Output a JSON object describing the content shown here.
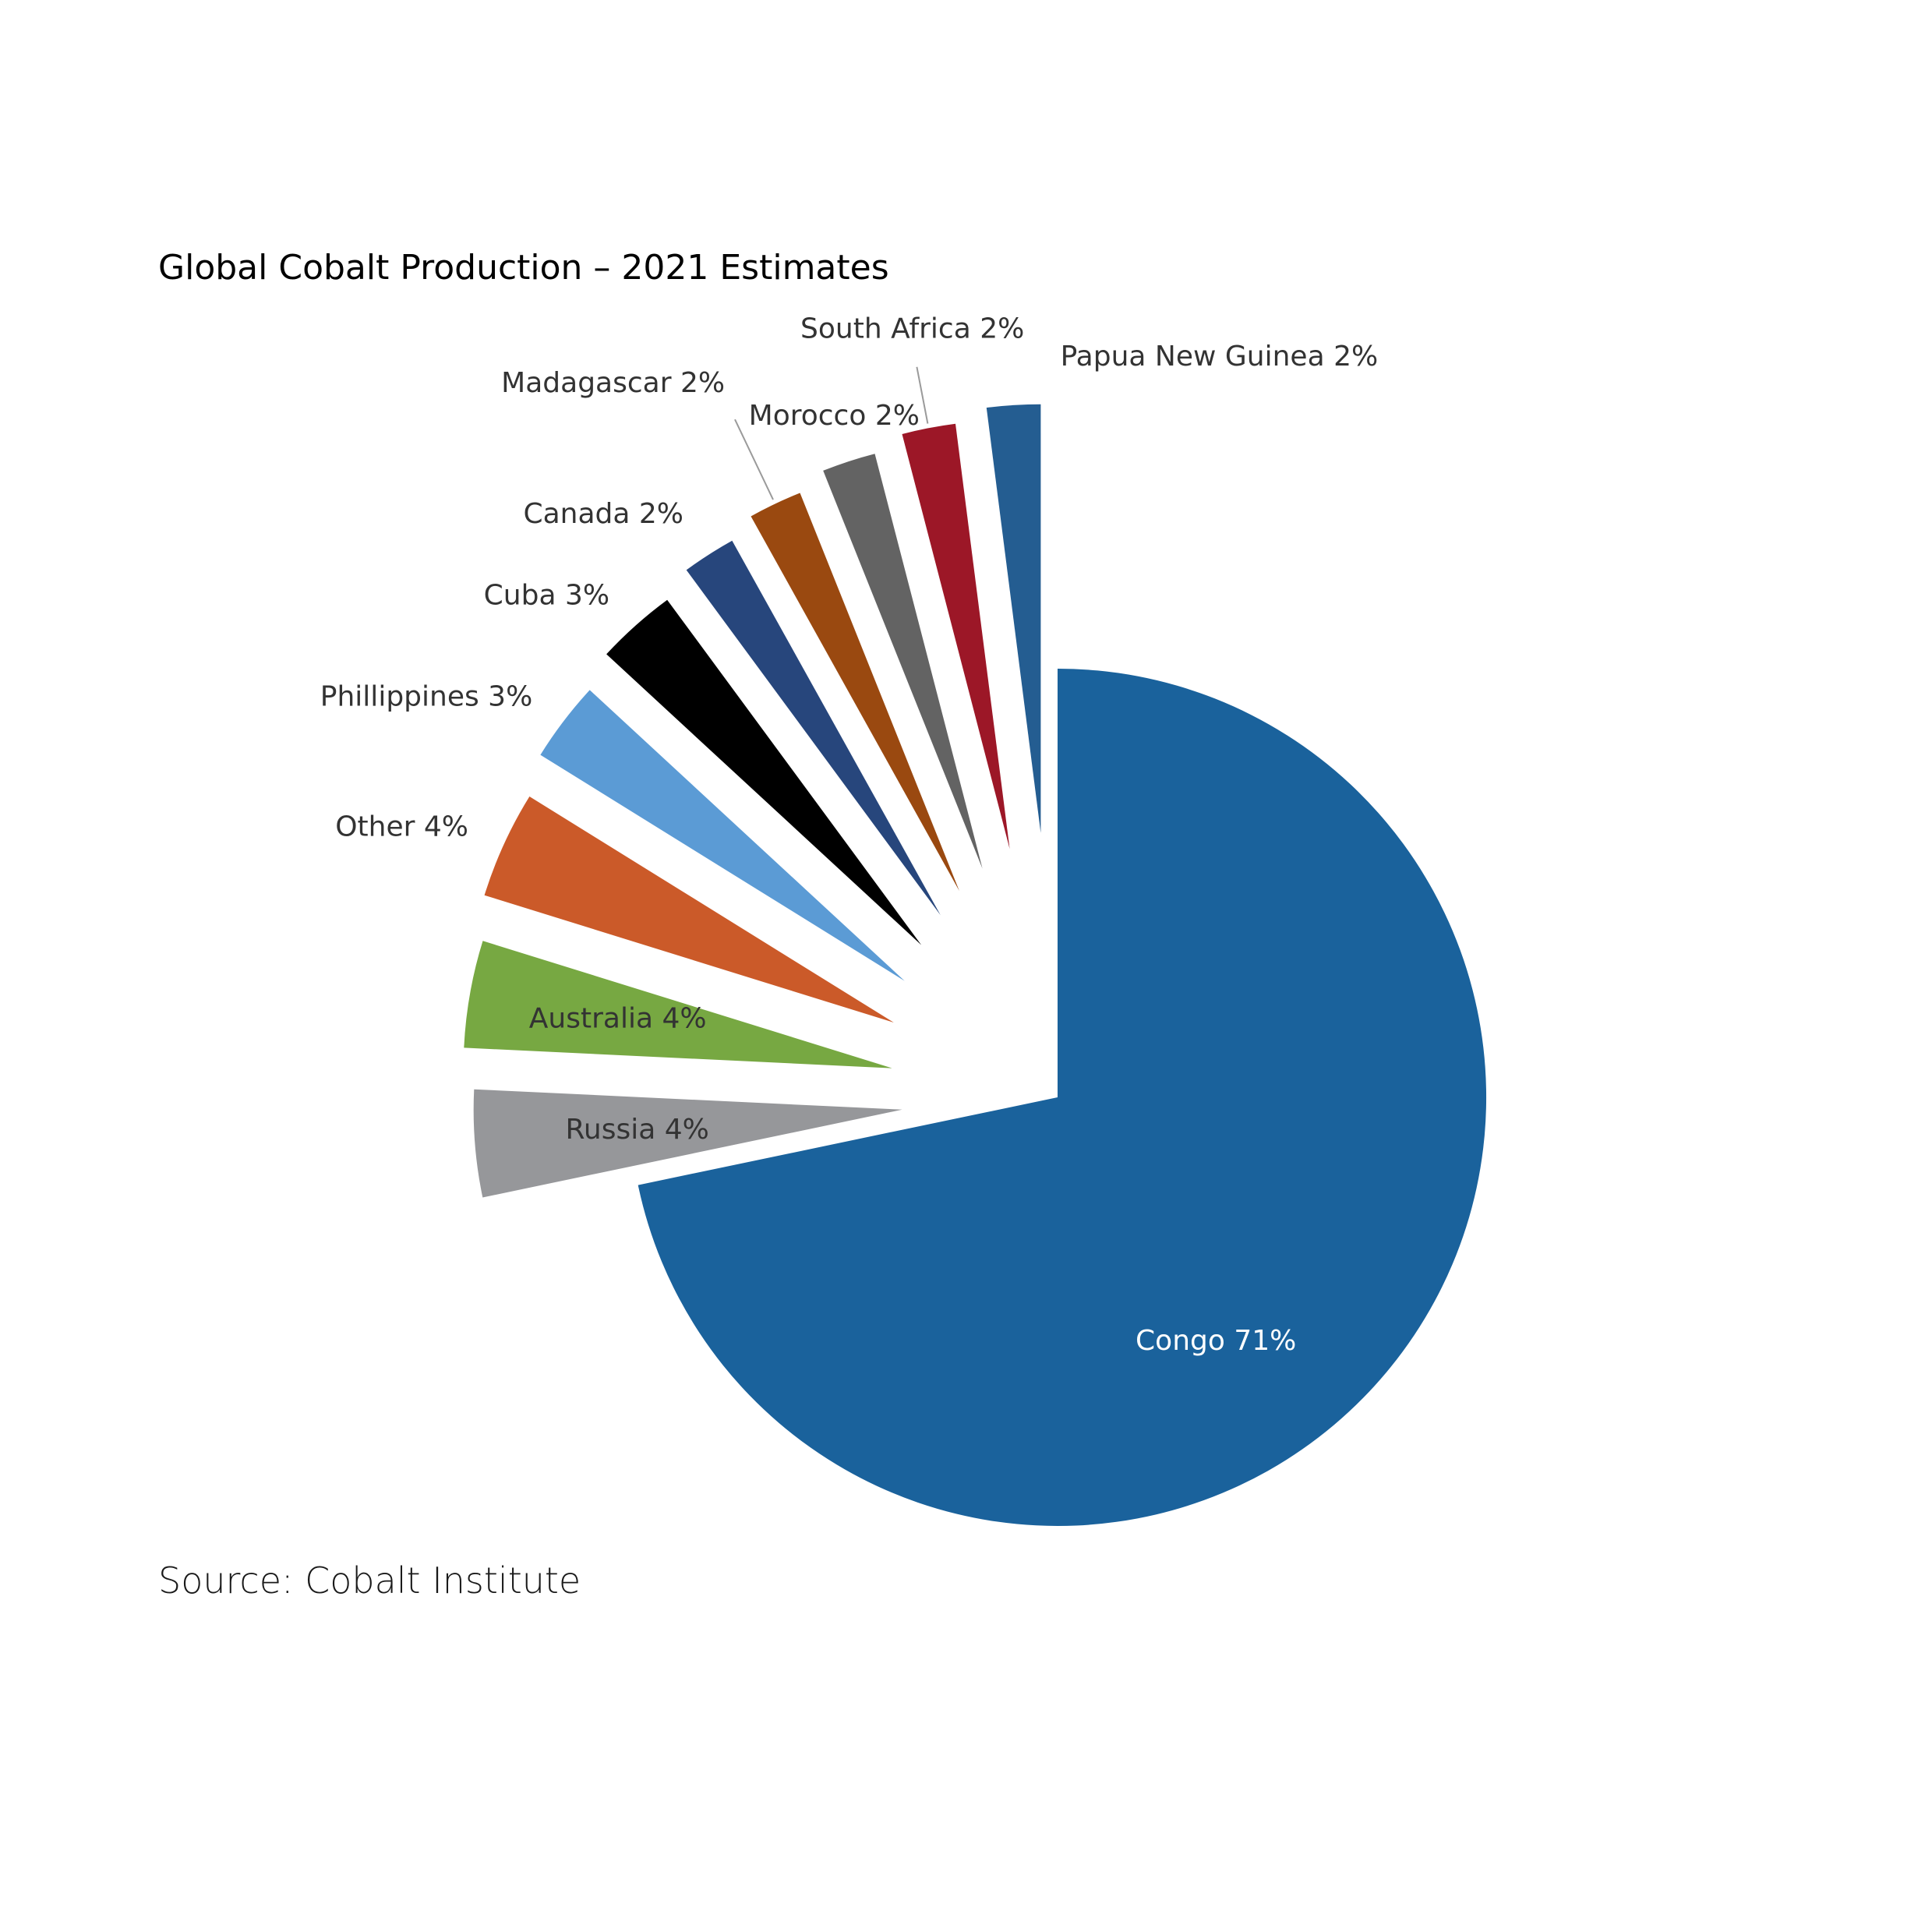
{
  "chart_data": {
    "type": "pie",
    "title": "Global Cobalt Production – 2021 Estimates",
    "source": "Source: Cobalt Institute",
    "unit": "%",
    "slices": [
      {
        "label": "Congo",
        "value": 71,
        "display": "Congo 71%",
        "color": "#1a629c"
      },
      {
        "label": "Russia",
        "value": 4,
        "display": "Russia 4%",
        "color": "#96979a"
      },
      {
        "label": "Australia",
        "value": 4,
        "display": "Australia 4%",
        "color": "#77a842"
      },
      {
        "label": "Other",
        "value": 4,
        "display": "Other 4%",
        "color": "#cb5a29"
      },
      {
        "label": "Phillippines",
        "value": 3,
        "display": "Phillippines 3%",
        "color": "#5b9bd5"
      },
      {
        "label": "Cuba",
        "value": 3,
        "display": "Cuba 3%",
        "color": "#000000"
      },
      {
        "label": "Canada",
        "value": 2,
        "display": "Canada 2%",
        "color": "#27467c"
      },
      {
        "label": "Madagascar",
        "value": 2,
        "display": "Madagascar 2%",
        "color": "#9a4910"
      },
      {
        "label": "Morocco",
        "value": 2,
        "display": "Morocco 2%",
        "color": "#636363"
      },
      {
        "label": "South Africa",
        "value": 2,
        "display": "South Africa 2%",
        "color": "#9c1727"
      },
      {
        "label": "Papua New Guinea",
        "value": 2,
        "display": "Papua New Guinea 2%",
        "color": "#245d91"
      }
    ]
  }
}
